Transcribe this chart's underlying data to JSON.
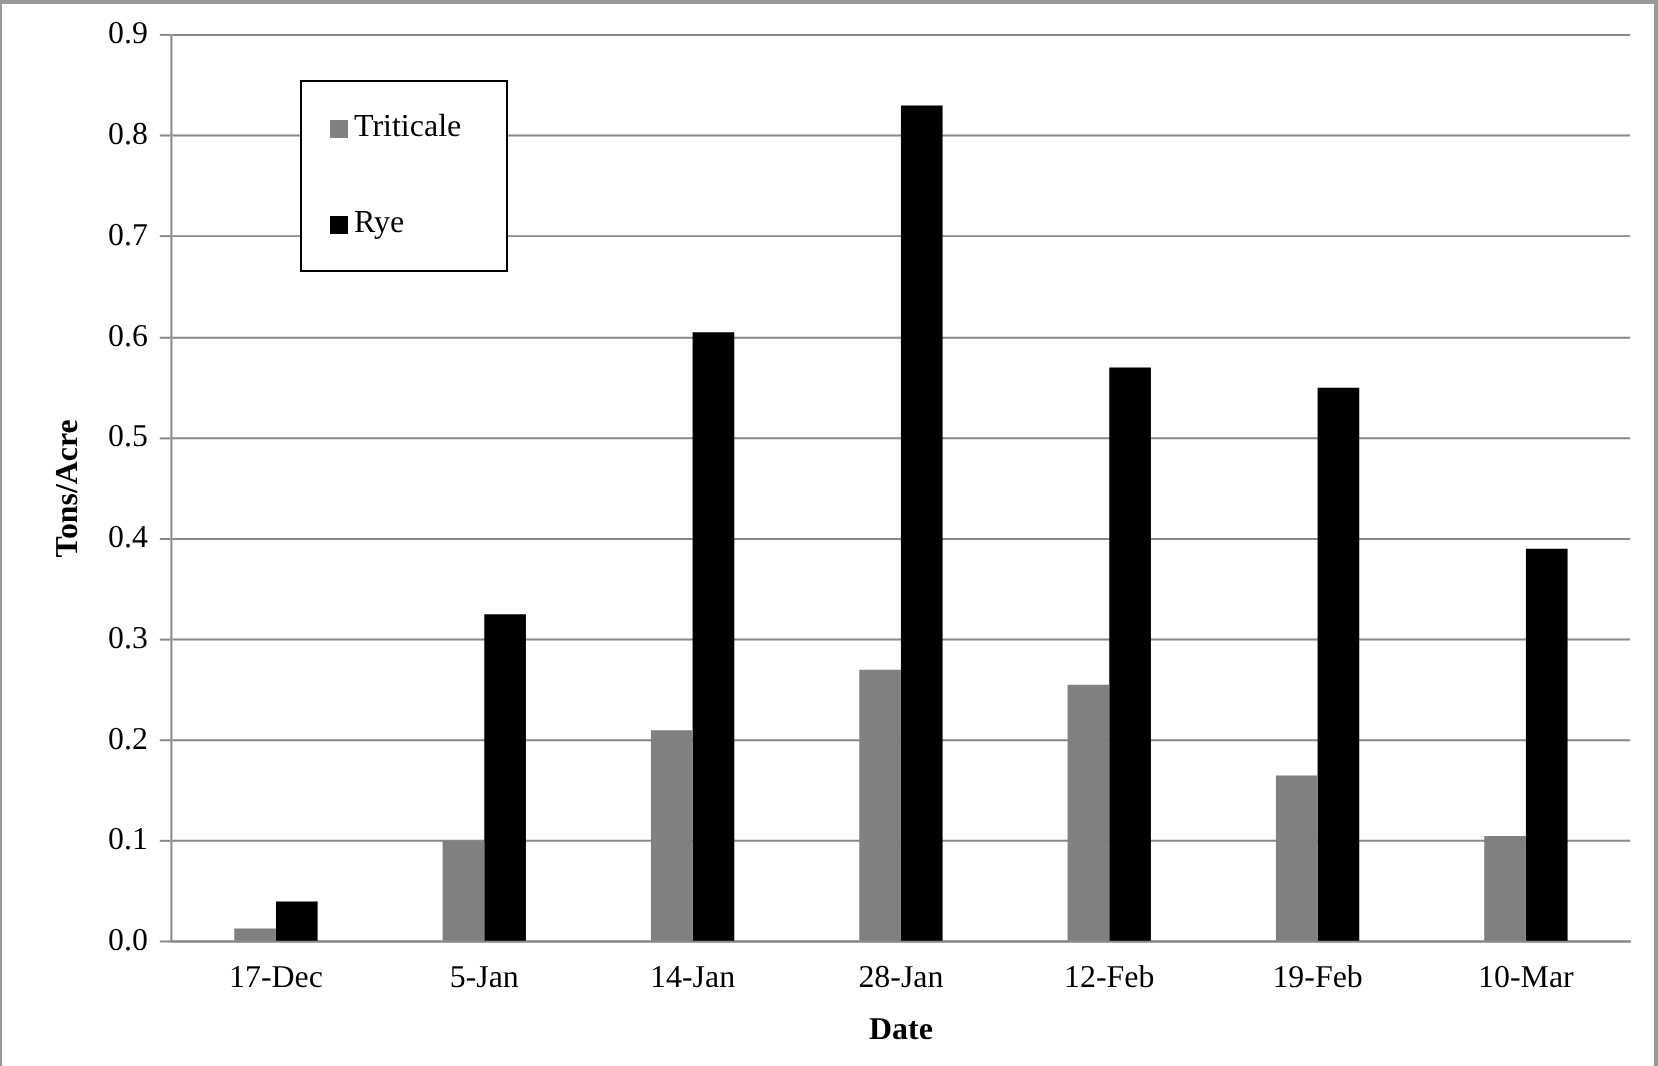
{
  "chart_data": {
    "type": "bar",
    "xlabel": "Date",
    "ylabel": "Tons/Acre",
    "categories": [
      "17-Dec",
      "5-Jan",
      "14-Jan",
      "28-Jan",
      "12-Feb",
      "19-Feb",
      "10-Mar"
    ],
    "series": [
      {
        "name": "Triticale",
        "color": "#808080",
        "values": [
          0.013,
          0.1,
          0.21,
          0.27,
          0.255,
          0.165,
          0.105
        ]
      },
      {
        "name": "Rye",
        "color": "#000000",
        "values": [
          0.04,
          0.325,
          0.605,
          0.83,
          0.57,
          0.55,
          0.39
        ]
      }
    ],
    "ylim": [
      0,
      0.9
    ],
    "yticks": [
      {
        "value": 0,
        "label": "0.0"
      },
      0.1,
      0.2,
      0.3,
      0.4,
      0.5,
      0.6,
      0.7,
      0.8,
      0.9
    ],
    "grid": "y",
    "legend": "top left"
  }
}
